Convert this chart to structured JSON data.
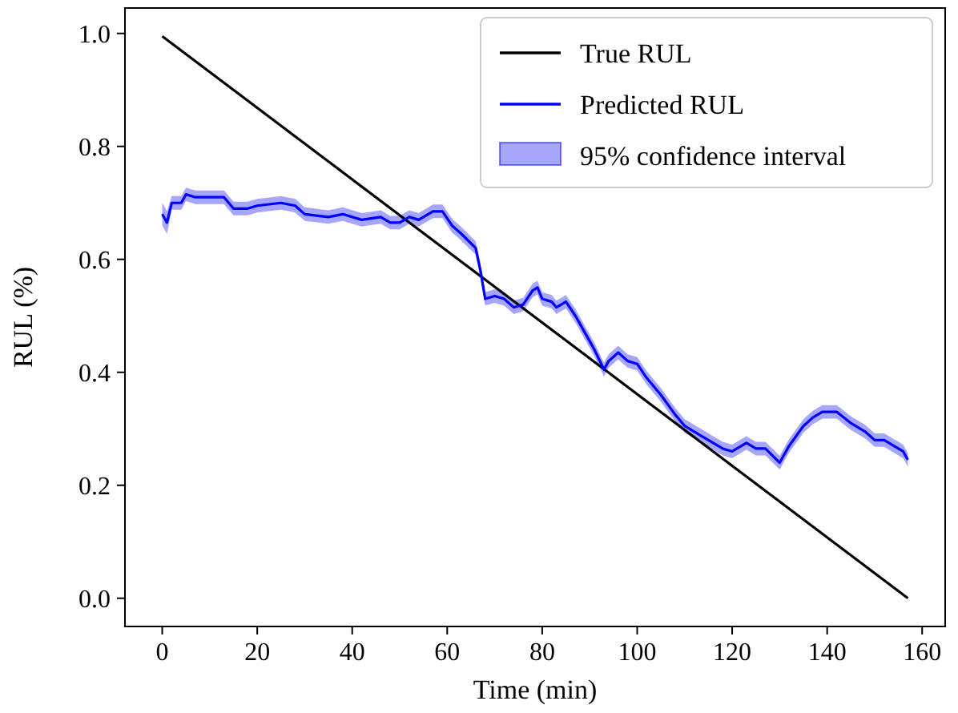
{
  "chart_data": {
    "type": "line",
    "xlabel": "Time (min)",
    "ylabel": "RUL (%)",
    "xlim": [
      -7.85,
      164.85
    ],
    "ylim": [
      -0.05,
      1.045
    ],
    "xticks": [
      0,
      20,
      40,
      60,
      80,
      100,
      120,
      140,
      160
    ],
    "yticks": [
      {
        "value": 0,
        "label": "0.0"
      },
      {
        "value": 0.2,
        "label": "0.2"
      },
      {
        "value": 0.4,
        "label": "0.4"
      },
      {
        "value": 0.6,
        "label": "0.6"
      },
      {
        "value": 0.8,
        "label": "0.8"
      },
      {
        "value": 1,
        "label": "1.0"
      }
    ],
    "grid": false,
    "legend": "top right",
    "line_style": "solid",
    "marker": "none",
    "annotations": [
      "95% confidence interval"
    ],
    "series": [
      {
        "name": "True RUL",
        "color": "#000000",
        "x": [
          0,
          157
        ],
        "values": [
          0.995,
          0
        ]
      },
      {
        "name": "Predicted RUL",
        "color": "#0000ff",
        "x": [
          0,
          1,
          2,
          4,
          5,
          7,
          10,
          13,
          15,
          18,
          20,
          25,
          28,
          30,
          35,
          38,
          42,
          46,
          48,
          50,
          52,
          54,
          57,
          59,
          61,
          63,
          66,
          67,
          68,
          70,
          72,
          74,
          76,
          78,
          79,
          80,
          82,
          83,
          85,
          87,
          89,
          91,
          93,
          94,
          96,
          98,
          100,
          102,
          105,
          108,
          110,
          113,
          116,
          118,
          120,
          123,
          125,
          127,
          130,
          132,
          135,
          137,
          139,
          142,
          145,
          148,
          150,
          152,
          155,
          156,
          157
        ],
        "values": [
          0.68,
          0.665,
          0.7,
          0.7,
          0.715,
          0.71,
          0.71,
          0.71,
          0.69,
          0.69,
          0.695,
          0.7,
          0.695,
          0.68,
          0.675,
          0.68,
          0.67,
          0.675,
          0.665,
          0.665,
          0.675,
          0.67,
          0.685,
          0.685,
          0.66,
          0.645,
          0.62,
          0.58,
          0.53,
          0.535,
          0.53,
          0.515,
          0.52,
          0.545,
          0.55,
          0.53,
          0.525,
          0.515,
          0.525,
          0.5,
          0.47,
          0.44,
          0.405,
          0.42,
          0.435,
          0.42,
          0.415,
          0.39,
          0.36,
          0.325,
          0.305,
          0.29,
          0.275,
          0.265,
          0.26,
          0.275,
          0.265,
          0.265,
          0.24,
          0.27,
          0.305,
          0.32,
          0.33,
          0.33,
          0.31,
          0.295,
          0.28,
          0.28,
          0.265,
          0.26,
          0.245
        ],
        "lower": [
          0.66,
          0.645,
          0.688,
          0.688,
          0.703,
          0.698,
          0.698,
          0.698,
          0.678,
          0.678,
          0.683,
          0.688,
          0.683,
          0.668,
          0.663,
          0.668,
          0.658,
          0.663,
          0.653,
          0.653,
          0.663,
          0.658,
          0.673,
          0.673,
          0.648,
          0.633,
          0.608,
          0.568,
          0.518,
          0.523,
          0.518,
          0.503,
          0.508,
          0.533,
          0.538,
          0.518,
          0.513,
          0.503,
          0.513,
          0.488,
          0.458,
          0.428,
          0.393,
          0.408,
          0.423,
          0.408,
          0.403,
          0.378,
          0.348,
          0.313,
          0.293,
          0.278,
          0.263,
          0.253,
          0.248,
          0.263,
          0.253,
          0.253,
          0.228,
          0.258,
          0.293,
          0.308,
          0.318,
          0.318,
          0.298,
          0.283,
          0.268,
          0.268,
          0.253,
          0.248,
          0.233
        ],
        "upper": [
          0.7,
          0.685,
          0.712,
          0.712,
          0.727,
          0.722,
          0.722,
          0.722,
          0.702,
          0.702,
          0.707,
          0.712,
          0.707,
          0.692,
          0.687,
          0.692,
          0.682,
          0.687,
          0.677,
          0.677,
          0.687,
          0.682,
          0.697,
          0.697,
          0.672,
          0.657,
          0.632,
          0.592,
          0.542,
          0.547,
          0.542,
          0.527,
          0.532,
          0.557,
          0.562,
          0.542,
          0.537,
          0.527,
          0.537,
          0.512,
          0.482,
          0.452,
          0.417,
          0.432,
          0.447,
          0.432,
          0.427,
          0.402,
          0.372,
          0.337,
          0.317,
          0.302,
          0.287,
          0.277,
          0.272,
          0.287,
          0.277,
          0.277,
          0.252,
          0.282,
          0.317,
          0.332,
          0.342,
          0.342,
          0.322,
          0.307,
          0.292,
          0.292,
          0.277,
          0.272,
          0.257
        ]
      }
    ]
  }
}
